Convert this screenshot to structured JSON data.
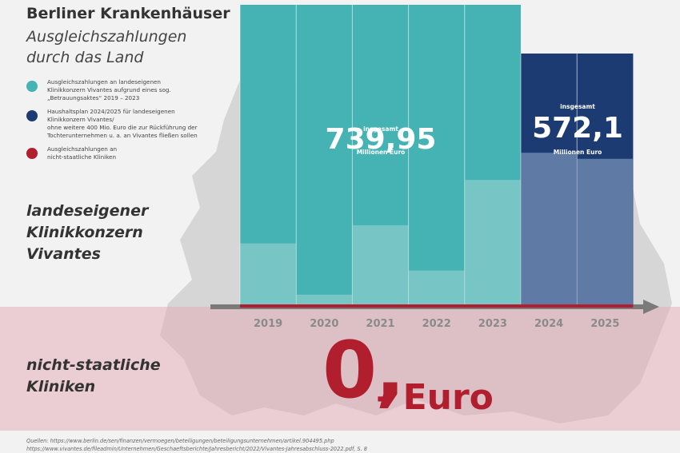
{
  "header": {
    "title": "Berliner Krankenhäuser",
    "subtitle": "Ausgleichszahlungen durch das Land"
  },
  "legend": [
    {
      "color": "#45b3b3",
      "text": "Ausgleichszahlungen an landeseigenen\nKlinikkonzern Vivantes aufgrund eines sog.\n„Betrauungsaktes“ 2019 – 2023"
    },
    {
      "color": "#1c3b73",
      "text": "Haushaltsplan 2024/2025 für landeseigenen\nKlinikkonzern Vivantes/\nohne weitere 400 Mio. Euro die zur Rückführung der\nTochterunternehmen u. a. an Vivantes fließen sollen"
    },
    {
      "color": "#b11e2e",
      "text": "Ausgleichszahlungen an\nnicht-staatliche Kliniken"
    }
  ],
  "labels": {
    "vivantes": "landeseigener\nKlinikkonzern\nVivantes",
    "nonstate": "nicht-staatliche\nKliniken"
  },
  "totals": {
    "past": {
      "top": "insgesamt",
      "value": "739,95",
      "unit": "Millionen Euro"
    },
    "plan": {
      "top": "insgesamt",
      "value": "572,1",
      "unit": "Millionen Euro"
    }
  },
  "nonstate_amount": {
    "big": "0,",
    "suffix": "- Euro"
  },
  "sources": "Quellen:  https://www.berlin.de/sen/finanzen/vermoegen/beteiligungen/beteiligungsunternehmen/artikel.904495.php\n                https://www.vivantes.de/fileadmin/Unternehmen/Geschaeftsberichte/Jahresbericht/2022/Vivantes-Jahresabschluss-2022.pdf, S. 8",
  "chart_data": {
    "type": "bar",
    "categories": [
      "2019",
      "2020",
      "2021",
      "2022",
      "2023",
      "2024",
      "2025"
    ],
    "series": [
      {
        "name": "Ausgleichszahlungen an landeseigenen Klinikkonzern Vivantes aufgrund eines sog. „Betrauungsaktes“ 2019 – 2023",
        "color": "#45b3b3",
        "values": [
          null,
          null,
          null,
          null,
          null,
          null,
          null
        ]
      },
      {
        "name": "Haushaltsplan 2024/2025 für landeseigenen Klinikkonzern Vivantes",
        "color": "#1c3b73",
        "values": [
          null,
          null,
          null,
          null,
          null,
          null,
          null
        ]
      },
      {
        "name": "Ausgleichszahlungen an nicht-staatliche Kliniken",
        "color": "#b11e2e",
        "values": [
          0,
          0,
          0,
          0,
          0,
          0,
          0
        ]
      }
    ],
    "totals": {
      "2019–2023": 739.95,
      "2024–2025": 572.1
    },
    "unit": "Millionen Euro",
    "bar_fill_fraction": {
      "2019": 0.79,
      "2020": 0.96,
      "2021": 0.73,
      "2022": 0.88,
      "2023": 0.58,
      "2024": 0.49,
      "2025": 0.51
    }
  }
}
